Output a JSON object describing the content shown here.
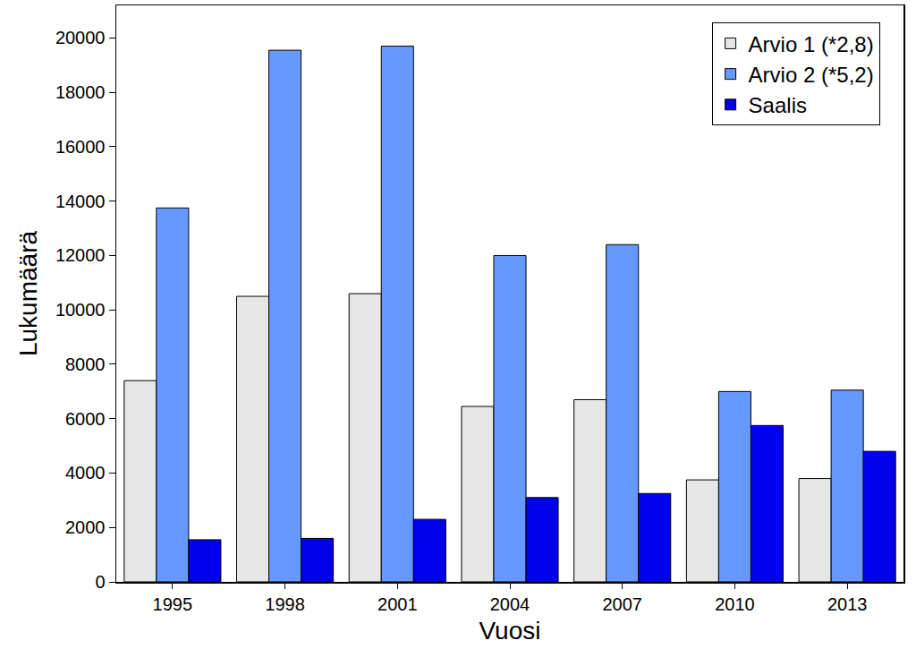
{
  "chart_data": {
    "type": "bar",
    "x_label": "Vuosi",
    "y_label": "Lukumäärä",
    "categories": [
      "1995",
      "1998",
      "2001",
      "2004",
      "2007",
      "2010",
      "2013"
    ],
    "series": [
      {
        "name": "Arvio 1 (*2,8)",
        "color": "#e6e6e6",
        "values": [
          7400,
          10500,
          10600,
          6450,
          6700,
          3750,
          3800
        ]
      },
      {
        "name": "Arvio 2 (*5,2)",
        "color": "#6699ff",
        "values": [
          13750,
          19550,
          19700,
          12000,
          12400,
          7000,
          7050
        ]
      },
      {
        "name": "Saalis",
        "color": "#0000ee",
        "values": [
          1550,
          1600,
          2300,
          3100,
          3250,
          5750,
          4800
        ]
      }
    ],
    "ylim": [
      0,
      21200
    ],
    "yticks": [
      0,
      2000,
      4000,
      6000,
      8000,
      10000,
      12000,
      14000,
      16000,
      18000,
      20000
    ],
    "grid": false,
    "legend": "top right"
  }
}
